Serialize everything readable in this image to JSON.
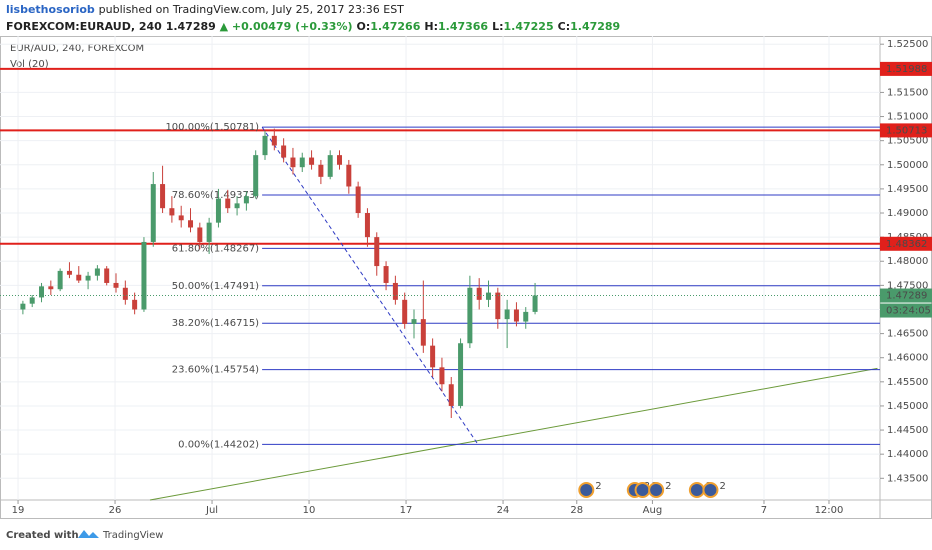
{
  "header": {
    "author": "lisbethosoriob",
    "published": "published on TradingView.com, July 25, 2017 23:36 EST",
    "symbol": "FOREXCOM:EURAUD, 240",
    "last": 1.47289,
    "change": "▲ +0.00479 (+0.33%)",
    "ohlc": [
      {
        "label": "O:",
        "value": 1.47266
      },
      {
        "label": "H:",
        "value": 1.47366
      },
      {
        "label": "L:",
        "value": 1.47225
      },
      {
        "label": "C:",
        "value": 1.47289
      }
    ]
  },
  "footer": {
    "created": "Created with",
    "brand": "TradingView"
  },
  "chart_data": {
    "type": "candlestick",
    "title": "EUR/AUD, 240, FOREXCOM",
    "subtitle": "Vol (20)",
    "up_color": "#4a9a6b",
    "down_color": "#c9403a",
    "grid": true,
    "xlim": [
      -0.93,
      44.43
    ],
    "ylim": [
      1.4305,
      1.5267
    ],
    "xticks": [
      {
        "value": 0,
        "label": "19"
      },
      {
        "value": 5,
        "label": "26"
      },
      {
        "value": 10,
        "label": "Jul"
      },
      {
        "value": 15,
        "label": "10"
      },
      {
        "value": 20,
        "label": "17"
      },
      {
        "value": 25,
        "label": "24"
      },
      {
        "value": 28.8,
        "label": "28"
      },
      {
        "value": 32.7,
        "label": "Aug"
      },
      {
        "value": 38.45,
        "label": "7"
      },
      {
        "value": 41.8,
        "label": "12:00"
      }
    ],
    "yticks": [
      {
        "value": 1.525,
        "label": "1.52500"
      },
      {
        "value": 1.52,
        "label": "1.52000"
      },
      {
        "value": 1.515,
        "label": "1.51500"
      },
      {
        "value": 1.51,
        "label": "1.51000"
      },
      {
        "value": 1.505,
        "label": "1.50500"
      },
      {
        "value": 1.5,
        "label": "1.50000"
      },
      {
        "value": 1.495,
        "label": "1.49500"
      },
      {
        "value": 1.49,
        "label": "1.49000"
      },
      {
        "value": 1.485,
        "label": "1.48500"
      },
      {
        "value": 1.48,
        "label": "1.48000"
      },
      {
        "value": 1.475,
        "label": "1.47500"
      },
      {
        "value": 1.47,
        "label": "1.47000"
      },
      {
        "value": 1.465,
        "label": "1.46500"
      },
      {
        "value": 1.46,
        "label": "1.46000"
      },
      {
        "value": 1.455,
        "label": "1.45500"
      },
      {
        "value": 1.45,
        "label": "1.45000"
      },
      {
        "value": 1.445,
        "label": "1.44500"
      },
      {
        "value": 1.44,
        "label": "1.44000"
      },
      {
        "value": 1.435,
        "label": "1.43500"
      }
    ],
    "x": [
      0.25,
      0.73,
      1.21,
      1.69,
      2.17,
      2.65,
      3.13,
      3.61,
      4.09,
      4.57,
      5.05,
      5.53,
      6.01,
      6.49,
      6.97,
      7.45,
      7.93,
      8.41,
      8.89,
      9.37,
      9.85,
      10.33,
      10.81,
      11.29,
      11.77,
      12.25,
      12.73,
      13.21,
      13.69,
      14.17,
      14.65,
      15.13,
      15.61,
      16.09,
      16.57,
      17.05,
      17.53,
      18.01,
      18.49,
      18.97,
      19.45,
      19.93,
      20.41,
      20.89,
      21.37,
      21.85,
      22.33,
      22.81,
      23.29,
      23.77,
      24.25,
      24.73,
      25.21,
      25.69,
      26.17,
      26.65
    ],
    "open": [
      1.47,
      1.4712,
      1.4725,
      1.4748,
      1.4742,
      1.478,
      1.4772,
      1.476,
      1.477,
      1.4785,
      1.4755,
      1.4745,
      1.472,
      1.47,
      1.484,
      1.496,
      1.491,
      1.4895,
      1.4885,
      1.487,
      1.484,
      1.488,
      1.493,
      1.491,
      1.492,
      1.4935,
      1.502,
      1.506,
      1.504,
      1.5015,
      1.4995,
      1.5015,
      1.5,
      1.4975,
      1.502,
      1.5,
      1.4955,
      1.49,
      1.485,
      1.479,
      1.4755,
      1.472,
      1.467,
      1.468,
      1.4625,
      1.458,
      1.4545,
      1.45,
      1.463,
      1.4745,
      1.472,
      1.4735,
      1.468,
      1.47,
      1.4675,
      1.4695
    ],
    "high": [
      1.4718,
      1.473,
      1.4755,
      1.476,
      1.4785,
      1.4798,
      1.479,
      1.4778,
      1.4792,
      1.479,
      1.4775,
      1.476,
      1.4735,
      1.485,
      1.4985,
      1.4998,
      1.4935,
      1.4915,
      1.491,
      1.488,
      1.489,
      1.495,
      1.4948,
      1.4935,
      1.4945,
      1.503,
      1.507,
      1.5075,
      1.5055,
      1.5035,
      1.5025,
      1.503,
      1.501,
      1.503,
      1.503,
      1.501,
      1.4965,
      1.491,
      1.486,
      1.48,
      1.477,
      1.4735,
      1.47,
      1.476,
      1.464,
      1.46,
      1.456,
      1.464,
      1.477,
      1.4765,
      1.476,
      1.4745,
      1.472,
      1.4715,
      1.4705,
      1.4755
    ],
    "low": [
      1.469,
      1.4705,
      1.4715,
      1.473,
      1.4738,
      1.4765,
      1.4755,
      1.4742,
      1.476,
      1.475,
      1.4735,
      1.471,
      1.469,
      1.4695,
      1.483,
      1.49,
      1.488,
      1.487,
      1.486,
      1.4825,
      1.4815,
      1.487,
      1.49,
      1.4895,
      1.4905,
      1.493,
      1.501,
      1.503,
      1.5005,
      1.498,
      1.4985,
      1.499,
      1.496,
      1.497,
      1.499,
      1.494,
      1.489,
      1.483,
      1.477,
      1.474,
      1.471,
      1.466,
      1.464,
      1.461,
      1.456,
      1.453,
      1.4475,
      1.4495,
      1.462,
      1.47,
      1.4705,
      1.466,
      1.462,
      1.4665,
      1.466,
      1.469
    ],
    "close": [
      1.4712,
      1.4725,
      1.4748,
      1.4742,
      1.478,
      1.4772,
      1.476,
      1.477,
      1.4785,
      1.4755,
      1.4745,
      1.472,
      1.47,
      1.484,
      1.496,
      1.491,
      1.4895,
      1.4885,
      1.487,
      1.484,
      1.488,
      1.493,
      1.491,
      1.492,
      1.4935,
      1.502,
      1.506,
      1.504,
      1.5015,
      1.4995,
      1.5015,
      1.5,
      1.4975,
      1.502,
      1.5,
      1.4955,
      1.49,
      1.485,
      1.479,
      1.4755,
      1.472,
      1.467,
      1.468,
      1.4625,
      1.458,
      1.4545,
      1.45,
      1.463,
      1.4745,
      1.472,
      1.4735,
      1.468,
      1.47,
      1.4675,
      1.4695,
      1.4729
    ],
    "fib_color": "#2f3bc4",
    "fib_x": [
      12.58,
      23.71
    ],
    "fib_levels": [
      {
        "value": 1.50781,
        "label": "100.00%(1.50781)"
      },
      {
        "value": 1.49373,
        "label": "78.60%(1.49373)"
      },
      {
        "value": 1.48267,
        "label": "61.80%(1.48267)"
      },
      {
        "value": 1.47491,
        "label": "50.00%(1.47491)"
      },
      {
        "value": 1.46715,
        "label": "38.20%(1.46715)"
      },
      {
        "value": 1.45754,
        "label": "23.60%(1.45754)"
      },
      {
        "value": 1.44202,
        "label": "0.00%(1.44202)"
      }
    ],
    "level_color": "#e0201b",
    "levels": [
      1.51988,
      1.50713,
      1.48362
    ],
    "trend_color": "#6b9a3a",
    "trendline": {
      "x": [
        6.8,
        44.3
      ],
      "y": [
        1.4305,
        1.4578
      ]
    },
    "last_price": 1.47289,
    "last_color": "#4a9a6b",
    "countdown": "03:24:05",
    "events": [
      {
        "x": 29.6,
        "label": "2"
      },
      {
        "x": 32.1,
        "label": "3"
      },
      {
        "x": 32.5,
        "label": "3"
      },
      {
        "x": 33.2,
        "label": "2"
      },
      {
        "x": 35.3,
        "label": "2"
      },
      {
        "x": 36.0,
        "label": "2"
      }
    ]
  }
}
